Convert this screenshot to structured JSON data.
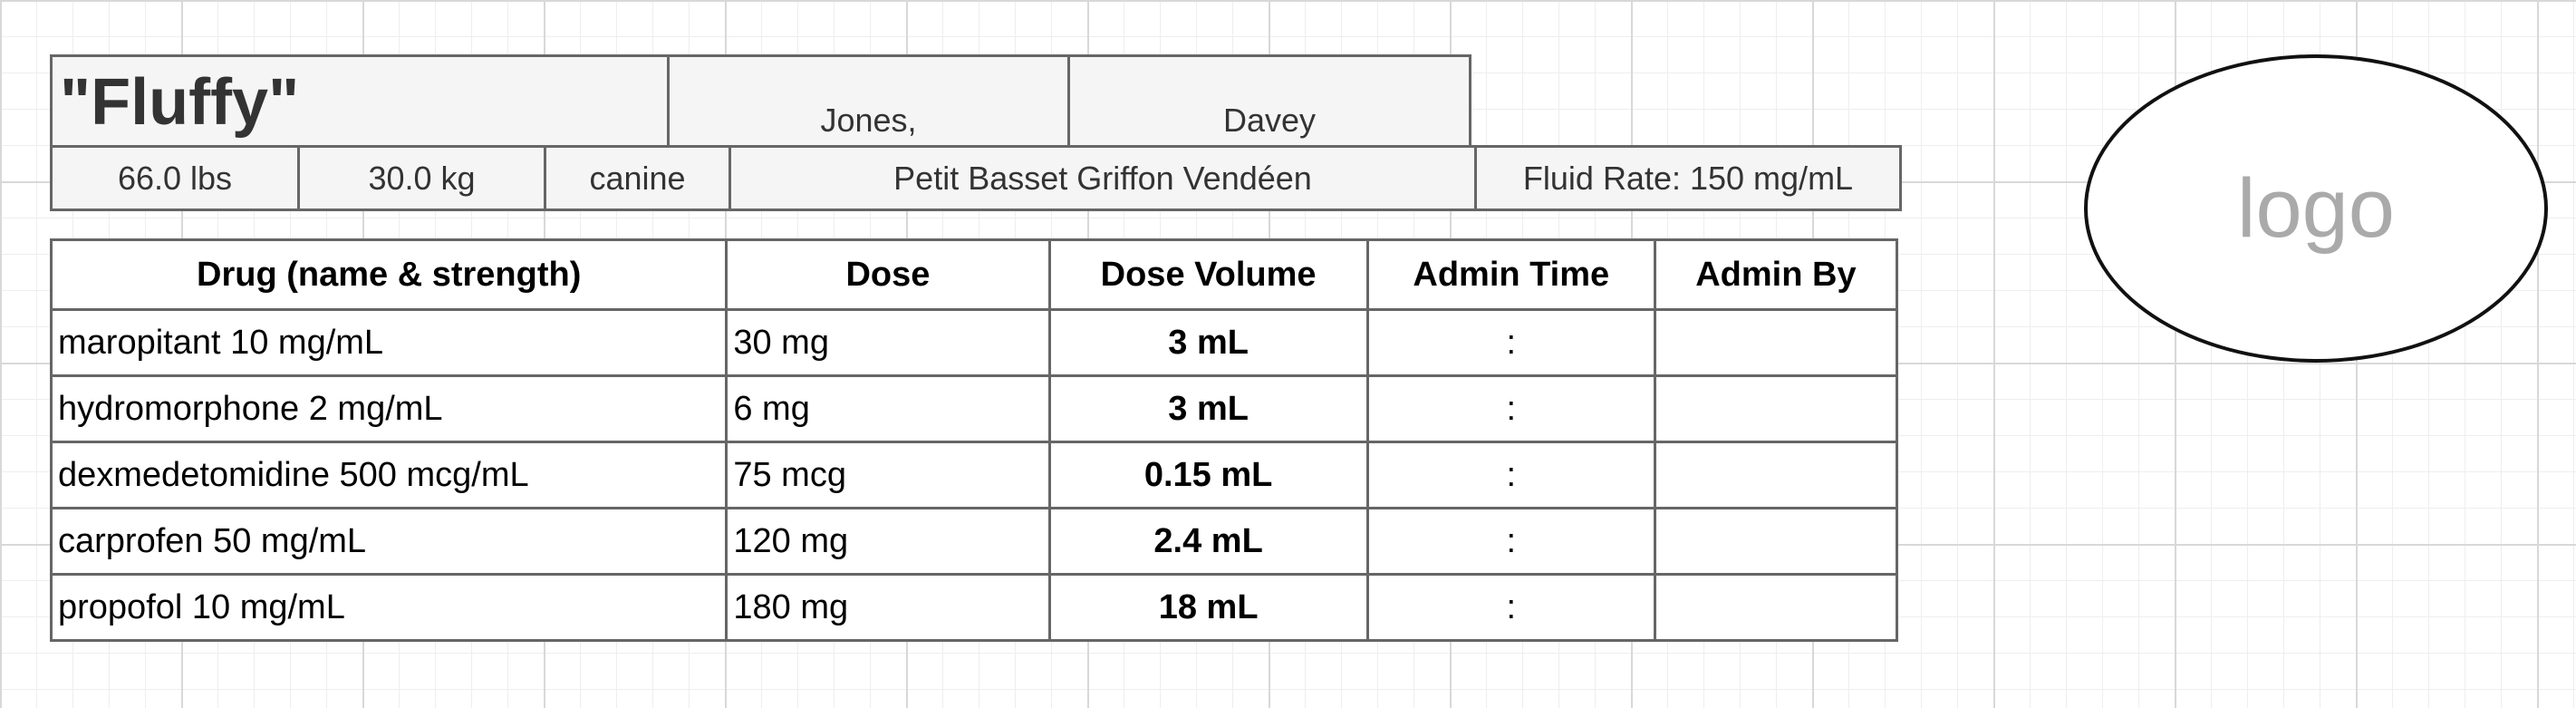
{
  "patient": {
    "name": "\"Fluffy\"",
    "owner_last": "Jones,",
    "owner_first": "Davey",
    "weight_lbs": "66.0 lbs",
    "weight_kg": "30.0 kg",
    "species": "canine",
    "breed": "Petit Basset Griffon Vendéen",
    "fluid_rate": "Fluid Rate: 150 mg/mL"
  },
  "table": {
    "headers": [
      "Drug (name & strength)",
      "Dose",
      "Dose Volume",
      "Admin Time",
      "Admin By"
    ],
    "rows": [
      {
        "drug": "maropitant 10 mg/mL",
        "dose": "30 mg",
        "volume": "3 mL",
        "time": ":",
        "by": ""
      },
      {
        "drug": "hydromorphone 2 mg/mL",
        "dose": "6 mg",
        "volume": "3 mL",
        "time": ":",
        "by": ""
      },
      {
        "drug": "dexmedetomidine 500 mcg/mL",
        "dose": "75 mcg",
        "volume": "0.15 mL",
        "time": ":",
        "by": ""
      },
      {
        "drug": "carprofen 50 mg/mL",
        "dose": "120 mg",
        "volume": "2.4 mL",
        "time": ":",
        "by": ""
      },
      {
        "drug": "propofol 10 mg/mL",
        "dose": "180 mg",
        "volume": "18 mL",
        "time": ":",
        "by": ""
      }
    ]
  },
  "logo": {
    "text": "logo"
  }
}
